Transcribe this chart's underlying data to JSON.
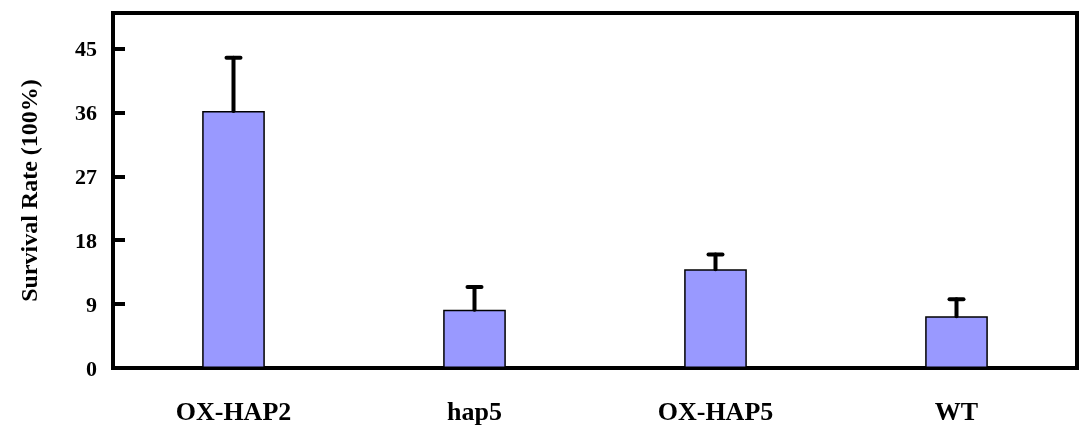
{
  "chart_data": {
    "type": "bar",
    "ylabel": "Survival Rate (100%)",
    "categories": [
      "OX-HAP2",
      "hap5",
      "OX-HAP5",
      "WT"
    ],
    "values": [
      36.2,
      8.2,
      13.9,
      7.3
    ],
    "errors": [
      [
        36.2,
        43.7
      ],
      [
        8.2,
        11.4
      ],
      [
        13.9,
        16.0
      ],
      [
        7.3,
        9.7
      ]
    ],
    "color": "#9999ff",
    "ylim": [
      0,
      50
    ],
    "yticks": [
      0,
      9,
      18,
      27,
      36,
      45
    ],
    "grid": false
  }
}
